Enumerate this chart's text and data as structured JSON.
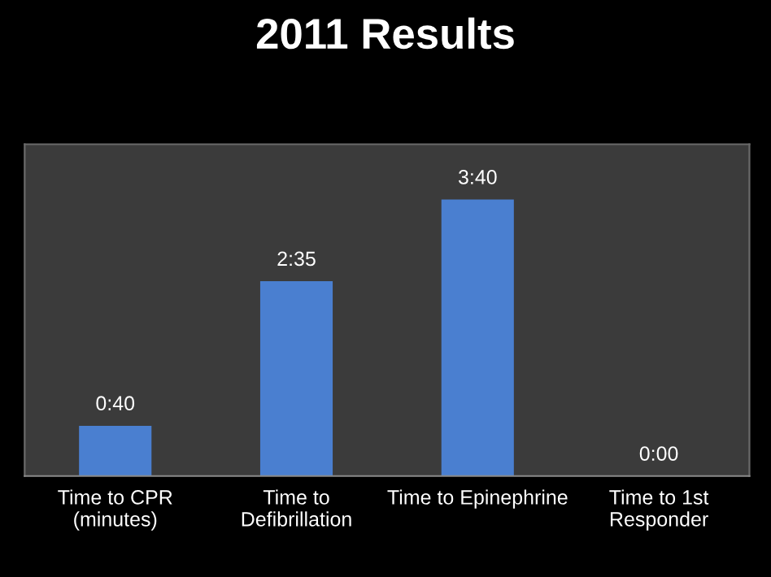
{
  "chart_data": {
    "type": "bar",
    "title": "2011 Results",
    "categories": [
      "Time to CPR\n(minutes)",
      "Time to\nDefibrillation",
      "Time to Epinephrine",
      "Time to 1st\nResponder"
    ],
    "values": [
      40,
      155,
      220,
      0
    ],
    "value_labels": [
      "0:40",
      "2:35",
      "3:40",
      "0:00"
    ],
    "color": "#4a7fd0",
    "grid": false,
    "legend": false
  }
}
